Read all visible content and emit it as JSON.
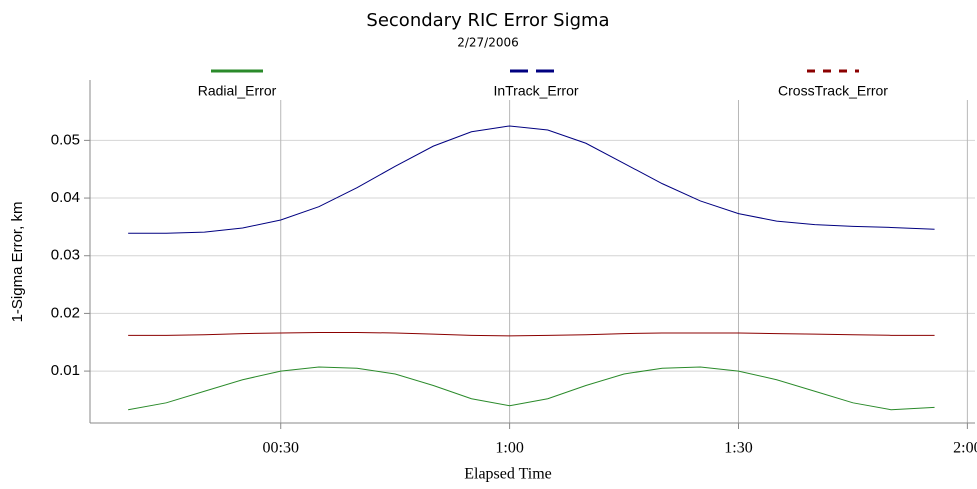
{
  "chart_data": {
    "type": "line",
    "title": "Secondary RIC Error Sigma",
    "subtitle": "2/27/2006",
    "x_label": "Elapsed Time",
    "y_label": "1-Sigma Error, km",
    "x": [
      10,
      15,
      20,
      25,
      30,
      35,
      40,
      45,
      50,
      55,
      60,
      65,
      70,
      75,
      80,
      85,
      90,
      95,
      100,
      105,
      110,
      115.7
    ],
    "series": [
      {
        "name": "Radial_Error",
        "color": "#2a8a2a",
        "line_style": "solid",
        "values": [
          0.0033,
          0.0045,
          0.0065,
          0.0085,
          0.01,
          0.0107,
          0.0105,
          0.0095,
          0.0075,
          0.0052,
          0.004,
          0.0052,
          0.0075,
          0.0095,
          0.0105,
          0.0107,
          0.01,
          0.0085,
          0.0065,
          0.0045,
          0.0033,
          0.0037
        ]
      },
      {
        "name": "InTrack_Error",
        "color": "#000080",
        "line_style": "dashed",
        "values": [
          0.0339,
          0.0339,
          0.0341,
          0.0348,
          0.0362,
          0.0385,
          0.0418,
          0.0455,
          0.049,
          0.0515,
          0.0525,
          0.0518,
          0.0495,
          0.046,
          0.0425,
          0.0395,
          0.0373,
          0.036,
          0.0354,
          0.0351,
          0.0349,
          0.0346
        ]
      },
      {
        "name": "CrossTrack_Error",
        "color": "#8b0000",
        "line_style": "dotted",
        "values": [
          0.0162,
          0.0162,
          0.0163,
          0.0165,
          0.0166,
          0.0167,
          0.0167,
          0.0166,
          0.0164,
          0.0162,
          0.0161,
          0.0162,
          0.0163,
          0.0165,
          0.0166,
          0.0166,
          0.0166,
          0.0165,
          0.0164,
          0.0163,
          0.0162,
          0.0162
        ]
      }
    ],
    "xlim": [
      5,
      121
    ],
    "ylim": [
      0.001,
      0.057
    ],
    "xticks": [
      {
        "value": 30,
        "label": "00:30"
      },
      {
        "value": 60,
        "label": "1:00"
      },
      {
        "value": 90,
        "label": "1:30"
      },
      {
        "value": 120,
        "label": "2:00"
      }
    ],
    "yticks": [
      0.01,
      0.02,
      0.03,
      0.04,
      0.05
    ],
    "grid": true,
    "legend": "top"
  }
}
